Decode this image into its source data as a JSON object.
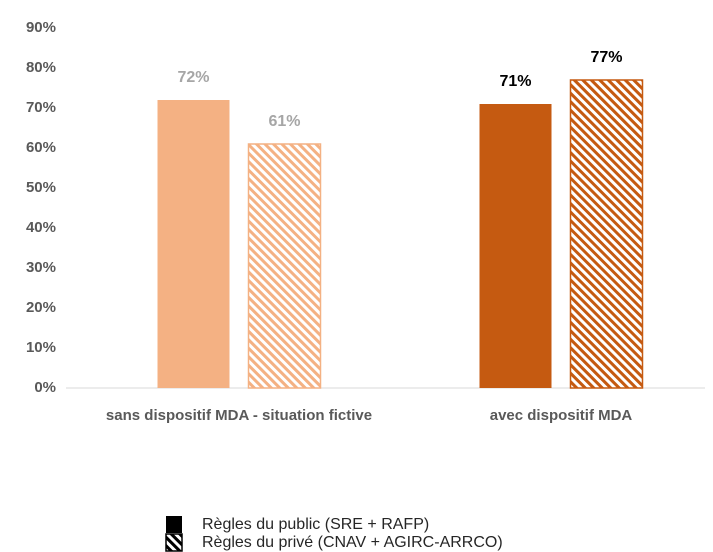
{
  "chart_data": {
    "type": "bar",
    "categories": [
      "sans dispositif MDA - situation fictive",
      "avec dispositif MDA"
    ],
    "category_colors": [
      "#f4b183",
      "#c55a11"
    ],
    "label_colors": [
      "#a6a6a6",
      "#000000"
    ],
    "series": [
      {
        "name": "Règles du public (SRE + RAFP)",
        "color": "#000000",
        "pattern": "solid",
        "values": [
          72,
          71
        ],
        "value_labels": [
          "72%",
          "71%"
        ]
      },
      {
        "name": "Règles du privé (CNAV + AGIRC-ARRCO)",
        "color": "#000000",
        "pattern": "hatch",
        "values": [
          61,
          77
        ],
        "value_labels": [
          "61%",
          "77%"
        ]
      }
    ],
    "ylim": [
      0,
      90
    ],
    "yticks": [
      {
        "value": 0,
        "label": "0%"
      },
      {
        "value": 10,
        "label": "10%"
      },
      {
        "value": 20,
        "label": "20%"
      },
      {
        "value": 30,
        "label": "30%"
      },
      {
        "value": 40,
        "label": "40%"
      },
      {
        "value": 50,
        "label": "50%"
      },
      {
        "value": 60,
        "label": "60%"
      },
      {
        "value": 70,
        "label": "70%"
      },
      {
        "value": 80,
        "label": "80%"
      },
      {
        "value": 90,
        "label": "90%"
      }
    ],
    "grid": false
  }
}
